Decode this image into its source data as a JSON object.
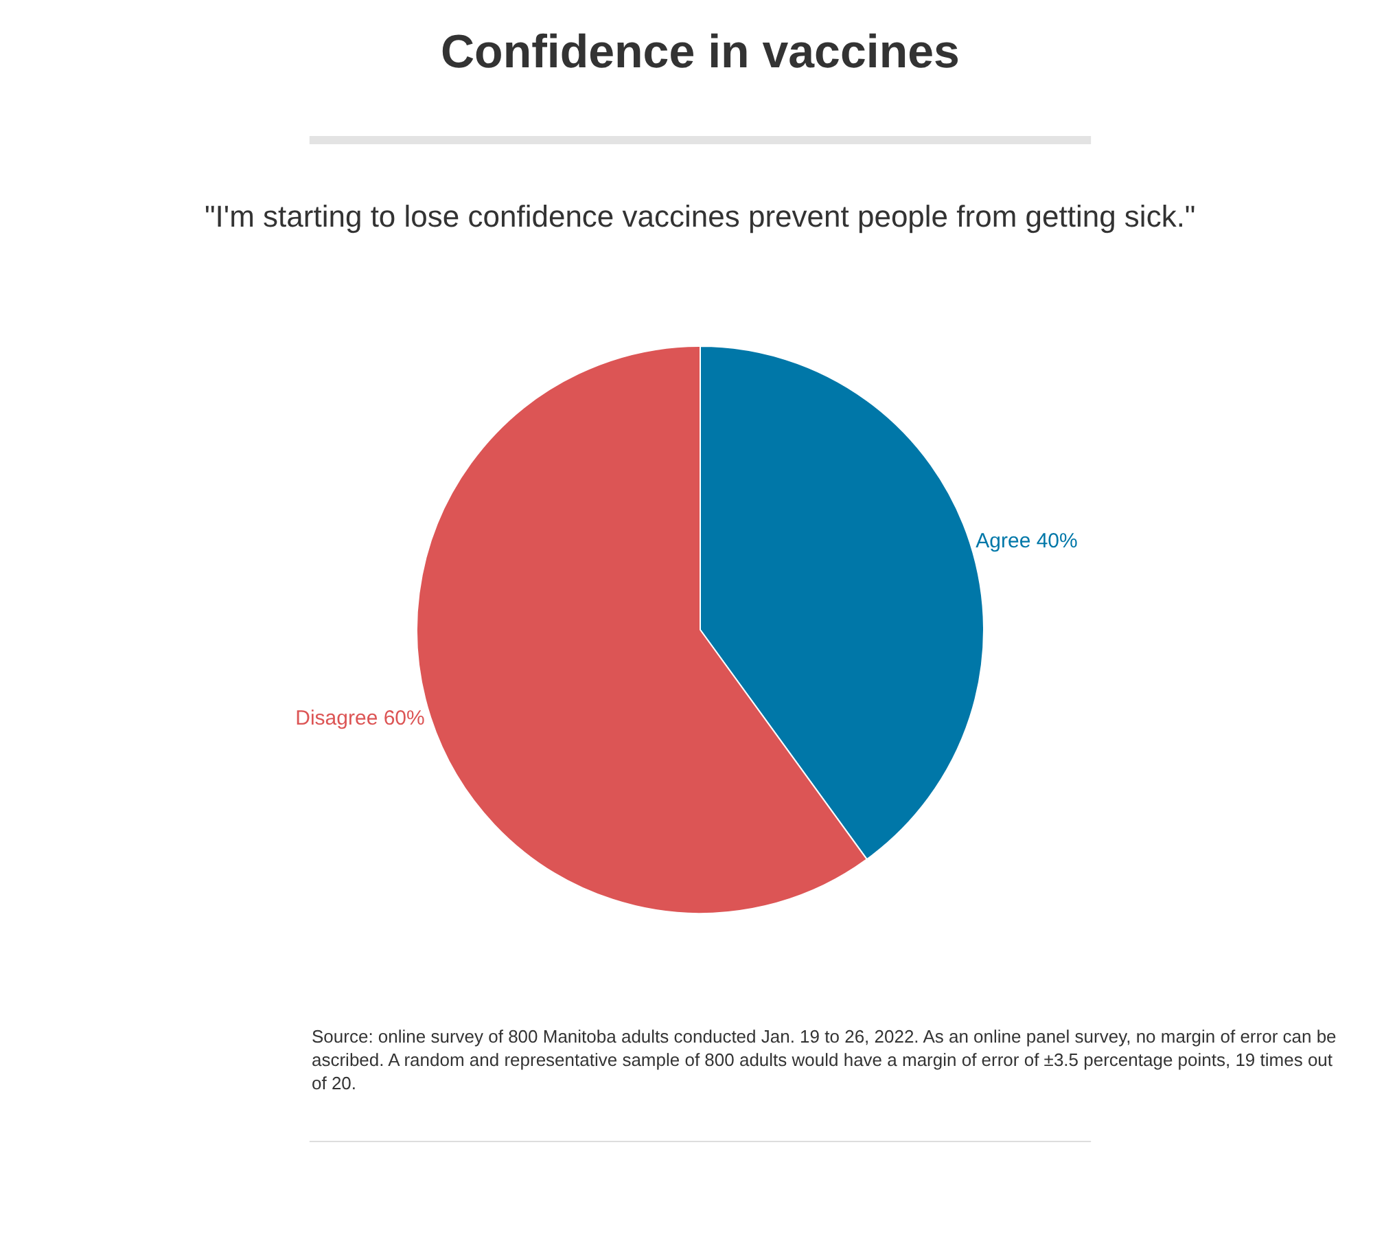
{
  "chart_data": {
    "type": "pie",
    "title": "Confidence in vaccines",
    "subtitle": "\"I'm starting to lose confidence vaccines prevent people from getting sick.\"",
    "categories": [
      "Agree",
      "Disagree"
    ],
    "values": [
      40,
      60
    ],
    "colors": [
      "#0077a8",
      "#dc5555"
    ],
    "value_labels": [
      "40%",
      "60%"
    ],
    "legend": false,
    "annotations": [
      "Source: online survey of 800 Manitoba adults conducted Jan. 19 to 26, 2022. As an online panel survey, no margin of error can be ascribed. A random and representative sample of 800 adults would have a margin of error of ±3.5 percentage points, 19 times out of 20."
    ]
  }
}
